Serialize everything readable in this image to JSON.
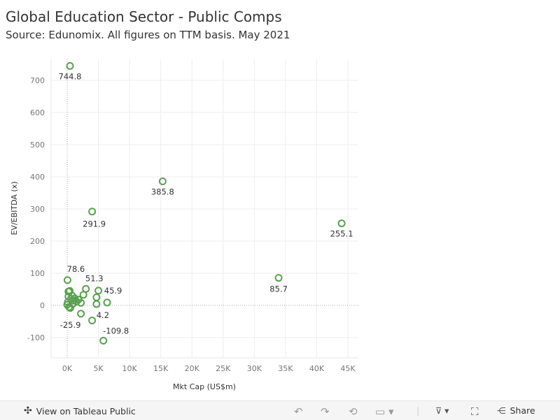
{
  "title": "Global Education Sector - Public Comps",
  "subtitle": "Source: Edunomix.  All figures on TTM basis. May 2021",
  "chart_data": {
    "type": "scatter",
    "xlabel": "Mkt Cap (US$m)",
    "ylabel": "EV/EBITDA (x)",
    "xlim": [
      -2500,
      47000
    ],
    "ylim": [
      -165,
      780
    ],
    "xticks": [
      0,
      5000,
      10000,
      15000,
      20000,
      25000,
      30000,
      35000,
      40000,
      45000
    ],
    "xtick_labels": [
      "0K",
      "5K",
      "10K",
      "15K",
      "20K",
      "25K",
      "30K",
      "35K",
      "40K",
      "45K"
    ],
    "yticks": [
      -100,
      0,
      100,
      200,
      300,
      400,
      500,
      600,
      700
    ],
    "ytick_labels": [
      "-100",
      "0",
      "100",
      "200",
      "300",
      "400",
      "500",
      "600",
      "700"
    ],
    "grid": true,
    "marker_color": "#59a14f",
    "points": [
      {
        "x": 450,
        "y": 744.8,
        "label": "744.8"
      },
      {
        "x": 15300,
        "y": 385.8,
        "label": "385.8"
      },
      {
        "x": 4000,
        "y": 291.9,
        "label": "291.9"
      },
      {
        "x": 44000,
        "y": 255.1,
        "label": "255.1"
      },
      {
        "x": 33900,
        "y": 85.7,
        "label": "85.7"
      },
      {
        "x": 50,
        "y": 78.6,
        "label": "78.6"
      },
      {
        "x": 3000,
        "y": 51.3,
        "label": "51.3"
      },
      {
        "x": 5000,
        "y": 45.9,
        "label": "45.9"
      },
      {
        "x": 4700,
        "y": 4.2,
        "label": "4.2"
      },
      {
        "x": 2200,
        "y": -25.9,
        "label": "-25.9"
      },
      {
        "x": 5800,
        "y": -109.8,
        "label": "-109.8"
      },
      {
        "x": 4000,
        "y": -47
      },
      {
        "x": 4700,
        "y": 25
      },
      {
        "x": 6400,
        "y": 9
      },
      {
        "x": 2600,
        "y": 33
      },
      {
        "x": 2200,
        "y": 8
      },
      {
        "x": 200,
        "y": 43
      },
      {
        "x": 400,
        "y": 45
      },
      {
        "x": 100,
        "y": 10
      },
      {
        "x": 0,
        "y": 2
      },
      {
        "x": 300,
        "y": -5
      },
      {
        "x": 600,
        "y": 20
      },
      {
        "x": 800,
        "y": 30
      },
      {
        "x": 1000,
        "y": 15
      },
      {
        "x": 1200,
        "y": 22
      },
      {
        "x": 500,
        "y": -8
      },
      {
        "x": 900,
        "y": 5
      },
      {
        "x": 1500,
        "y": 12
      },
      {
        "x": 1800,
        "y": 18
      },
      {
        "x": 200,
        "y": 28
      }
    ]
  },
  "toolbar": {
    "view_label": "View on Tableau Public",
    "share_label": "Share"
  }
}
